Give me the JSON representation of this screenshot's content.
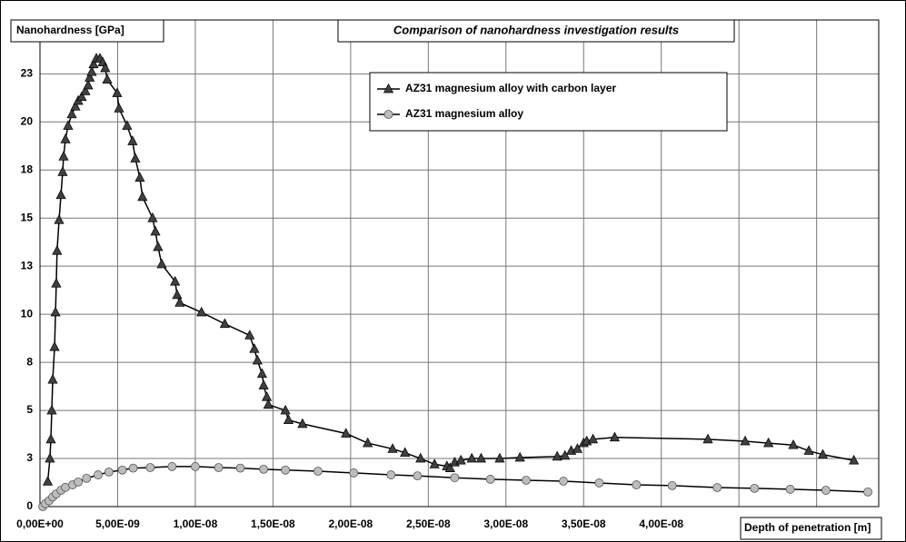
{
  "chart_data": {
    "type": "line",
    "title": "Comparison of nanohardness investigation results",
    "x_label": "Depth of penetration [m]",
    "y_label": "Nanohardness [GPa]",
    "xlim": [
      0,
      5.4e-08
    ],
    "ylim": [
      0,
      25.3
    ],
    "xticks": [
      {
        "value": 0,
        "label": "0,00E+00"
      },
      {
        "value": 5e-09,
        "label": "5,00E-09"
      },
      {
        "value": 1e-08,
        "label": "1,00E-08"
      },
      {
        "value": 1.5e-08,
        "label": "1,50E-08"
      },
      {
        "value": 2e-08,
        "label": "2,00E-08"
      },
      {
        "value": 2.5e-08,
        "label": "2,50E-08"
      },
      {
        "value": 3e-08,
        "label": "3,00E-08"
      },
      {
        "value": 3.5e-08,
        "label": "3,50E-08"
      },
      {
        "value": 4e-08,
        "label": "4,00E-08"
      }
    ],
    "xgrid": [
      4.5e-08,
      5e-08
    ],
    "yticks": [
      0,
      {
        "value": 2.5,
        "label": "3"
      },
      5,
      {
        "value": 7.5,
        "label": "8"
      },
      10,
      {
        "value": 12.5,
        "label": "13"
      },
      15,
      {
        "value": 17.5,
        "label": "18"
      },
      20,
      {
        "value": 22.5,
        "label": "23"
      }
    ],
    "grid": true,
    "series": [
      {
        "name": "AZ31 magnesium alloy with carbon layer",
        "color": "#404040",
        "marker": "triangle",
        "x": [
          5e-10,
          6.4e-10,
          7e-10,
          7.6e-10,
          8.2e-10,
          9.4e-10,
          1e-09,
          1.05e-09,
          1.1e-09,
          1.23e-09,
          1.35e-09,
          1.46e-09,
          1.52e-09,
          1.64e-09,
          1.81e-09,
          2.05e-09,
          2.28e-09,
          2.46e-09,
          2.69e-09,
          2.92e-09,
          3.1e-09,
          3.2e-09,
          3.33e-09,
          3.45e-09,
          3.63e-09,
          3.86e-09,
          4.04e-09,
          4.2e-09,
          4.33e-09,
          4.97e-09,
          5.09e-09,
          5.61e-09,
          5.96e-09,
          6.14e-09,
          6.43e-09,
          6.6e-09,
          7.25e-09,
          7.43e-09,
          7.6e-09,
          7.84e-09,
          8.7e-09,
          8.83e-09,
          9e-09,
          1.04e-08,
          1.19e-08,
          1.35e-08,
          1.38e-08,
          1.4e-08,
          1.43e-08,
          1.44e-08,
          1.46e-08,
          1.47e-08,
          1.58e-08,
          1.6e-08,
          1.69e-08,
          1.97e-08,
          2.11e-08,
          2.27e-08,
          2.35e-08,
          2.45e-08,
          2.54e-08,
          2.62e-08,
          2.64e-08,
          2.67e-08,
          2.71e-08,
          2.78e-08,
          2.84e-08,
          2.96e-08,
          3.09e-08,
          3.33e-08,
          3.38e-08,
          3.42e-08,
          3.46e-08,
          3.5e-08,
          3.52e-08,
          3.56e-08,
          3.7e-08,
          4.3e-08,
          4.54e-08,
          4.69e-08,
          4.85e-08,
          4.95e-08,
          5.04e-08,
          5.24e-08
        ],
        "values": [
          1.3,
          2.5,
          3.5,
          5.0,
          6.6,
          8.3,
          10.1,
          11.6,
          13.3,
          14.9,
          16.2,
          17.4,
          18.2,
          19.1,
          19.8,
          20.4,
          20.8,
          21.1,
          21.3,
          21.6,
          21.9,
          22.3,
          22.6,
          23.0,
          23.3,
          23.3,
          23.1,
          22.8,
          22.2,
          21.5,
          20.7,
          19.8,
          19.0,
          18.1,
          17.1,
          16.1,
          15.0,
          14.3,
          13.5,
          12.6,
          11.7,
          11.0,
          10.6,
          10.1,
          9.5,
          8.9,
          8.2,
          7.6,
          6.9,
          6.3,
          5.7,
          5.3,
          5.0,
          4.5,
          4.3,
          3.8,
          3.3,
          3.0,
          2.8,
          2.5,
          2.2,
          2.1,
          2.0,
          2.3,
          2.4,
          2.5,
          2.5,
          2.5,
          2.55,
          2.6,
          2.65,
          2.9,
          3.0,
          3.3,
          3.4,
          3.5,
          3.6,
          3.5,
          3.4,
          3.3,
          3.2,
          2.9,
          2.7,
          2.4
        ]
      },
      {
        "name": "AZ31 magnesium alloy",
        "color": "#bdbdbd",
        "marker": "circle",
        "x": [
          1.8e-10,
          3.5e-10,
          5.8e-10,
          8.2e-10,
          1.05e-09,
          1.35e-09,
          1.64e-09,
          2.1e-09,
          2.46e-09,
          3e-09,
          3.74e-09,
          4.44e-09,
          5.3e-09,
          6e-09,
          7.1e-09,
          8.5e-09,
          1e-08,
          1.15e-08,
          1.29e-08,
          1.44e-08,
          1.58e-08,
          1.79e-08,
          2.02e-08,
          2.26e-08,
          2.43e-08,
          2.67e-08,
          2.9e-08,
          3.13e-08,
          3.37e-08,
          3.6e-08,
          3.84e-08,
          4.07e-08,
          4.36e-08,
          4.6e-08,
          4.83e-08,
          5.06e-08,
          5.33e-08
        ],
        "values": [
          0,
          0.15,
          0.3,
          0.5,
          0.66,
          0.85,
          1.0,
          1.13,
          1.28,
          1.47,
          1.65,
          1.8,
          1.9,
          2.0,
          2.03,
          2.08,
          2.08,
          2.03,
          2.0,
          1.94,
          1.9,
          1.84,
          1.75,
          1.65,
          1.6,
          1.5,
          1.42,
          1.37,
          1.32,
          1.23,
          1.13,
          1.09,
          0.99,
          0.95,
          0.9,
          0.85,
          0.76
        ]
      }
    ]
  }
}
